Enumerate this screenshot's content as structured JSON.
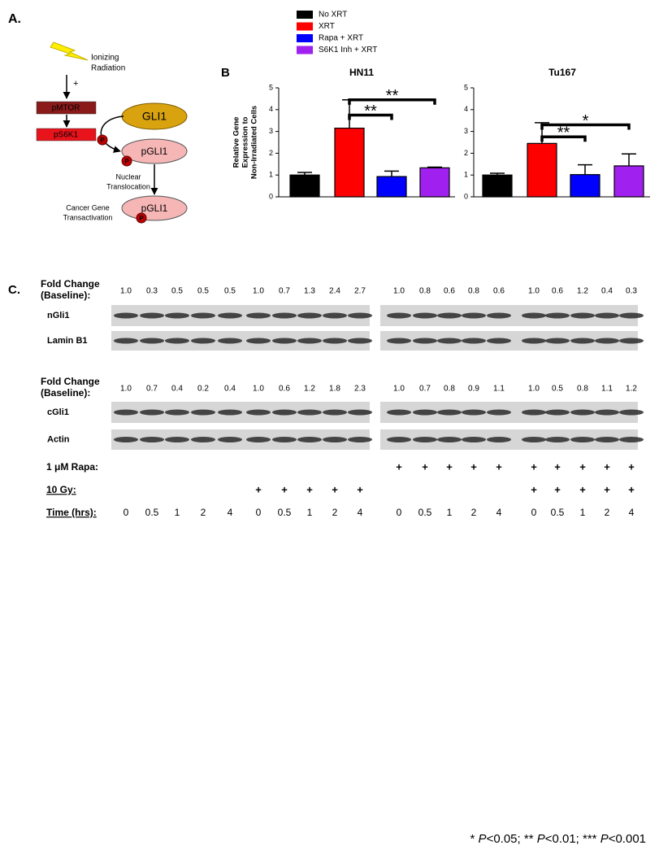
{
  "panel_a": {
    "label": "A.",
    "stimulus": [
      "Ionizing",
      "Radiation"
    ],
    "sign": "+",
    "kinases": [
      "pMTOR",
      "pS6K1"
    ],
    "target": "GLI1",
    "product": "pGLI1",
    "phospho": "P",
    "step_1": [
      "Nuclear",
      "Translocation"
    ],
    "step_2": [
      "Cancer Gene",
      "Transactivation"
    ],
    "final": "pGLI1"
  },
  "panel_b": {
    "label": "B",
    "legend": [
      {
        "name": "No XRT",
        "color": "#000000"
      },
      {
        "name": "XRT",
        "color": "#ff0000"
      },
      {
        "name": "Rapa + XRT",
        "color": "#0000ff"
      },
      {
        "name": "S6K1 Inh + XRT",
        "color": "#a020f0"
      }
    ],
    "y_label": [
      "Relative Gene",
      "Expression to",
      "Non-Irradiated Cells"
    ]
  },
  "chart_data": [
    {
      "type": "bar",
      "title": "HN11",
      "categories": [
        null,
        null,
        null,
        null
      ],
      "values": [
        1.0,
        3.15,
        0.93,
        1.33
      ],
      "errors": [
        0.12,
        1.3,
        0.25,
        0.03
      ],
      "ylim": [
        0,
        5
      ],
      "yticks": [
        0,
        1,
        2,
        3,
        4,
        5
      ],
      "annotations": [
        {
          "text": "**",
          "from": 1,
          "to": 2,
          "y": 3.75
        },
        {
          "text": "**",
          "from": 1,
          "to": 3,
          "y": 4.45
        }
      ]
    },
    {
      "type": "bar",
      "title": "Tu167",
      "categories": [
        null,
        null,
        null,
        null
      ],
      "values": [
        1.0,
        2.45,
        1.02,
        1.42
      ],
      "errors": [
        0.08,
        0.95,
        0.45,
        0.55
      ],
      "ylim": [
        0,
        5
      ],
      "yticks": [
        0,
        1,
        2,
        3,
        4,
        5
      ],
      "annotations": [
        {
          "text": "**",
          "from": 1,
          "to": 2,
          "y": 2.75
        },
        {
          "text": "*",
          "from": 1,
          "to": 3,
          "y": 3.3
        }
      ]
    }
  ],
  "panel_c": {
    "label": "C.",
    "blocks": [
      {
        "fold_label": [
          "Fold Change",
          "(Baseline):"
        ],
        "fold_change": [
          [
            "1.0",
            "0.3",
            "0.5",
            "0.5",
            "0.5"
          ],
          [
            "1.0",
            "0.7",
            "1.3",
            "2.4",
            "2.7"
          ],
          [
            "1.0",
            "0.8",
            "0.6",
            "0.8",
            "0.6"
          ],
          [
            "1.0",
            "0.6",
            "1.2",
            "0.4",
            "0.3"
          ]
        ],
        "rows": [
          "nGli1",
          "Lamin B1"
        ]
      },
      {
        "fold_label": [
          "Fold Change",
          "(Baseline):"
        ],
        "fold_change": [
          [
            "1.0",
            "0.7",
            "0.4",
            "0.2",
            "0.4"
          ],
          [
            "1.0",
            "0.6",
            "1.2",
            "1.8",
            "2.3"
          ],
          [
            "1.0",
            "0.7",
            "0.8",
            "0.9",
            "1.1"
          ],
          [
            "1.0",
            "0.5",
            "0.8",
            "1.1",
            "1.2"
          ]
        ],
        "rows": [
          "cGli1",
          "Actin"
        ]
      }
    ],
    "conditions": [
      {
        "label": "1 μM Rapa:",
        "symbol": "+",
        "present": [
          false,
          false,
          true,
          true
        ],
        "underline": false
      },
      {
        "label": "10 Gy:",
        "symbol": "+",
        "present": [
          false,
          true,
          false,
          true
        ],
        "underline": true
      }
    ],
    "time": {
      "label": "Time (hrs):",
      "values": [
        "0",
        "0.5",
        "1",
        "2",
        "4"
      ],
      "underline": true
    }
  },
  "footnote": [
    {
      "text": "* ",
      "italic": false
    },
    {
      "text": "P",
      "italic": true
    },
    {
      "text": "<0.05; ** ",
      "italic": false
    },
    {
      "text": "P",
      "italic": true
    },
    {
      "text": "<0.01; *** ",
      "italic": false
    },
    {
      "text": "P",
      "italic": true
    },
    {
      "text": "<0.001",
      "italic": false
    }
  ]
}
